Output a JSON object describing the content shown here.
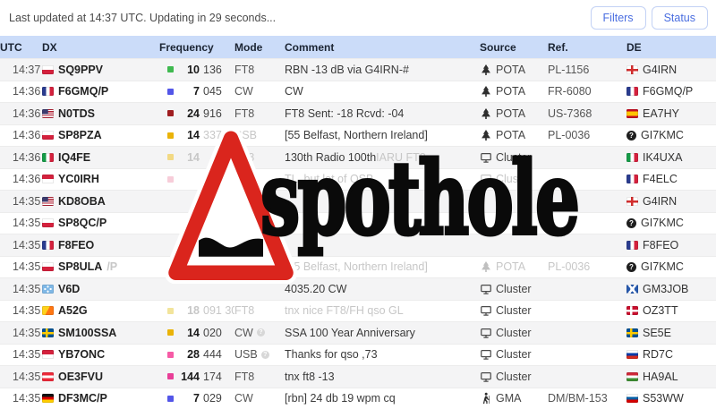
{
  "topbar": {
    "status_text": "Last updated at 14:37 UTC. Updating in 29 seconds...",
    "filters_label": "Filters",
    "status_label": "Status"
  },
  "watermark": {
    "text": "spothole",
    "sign": "pothole-warning-triangle",
    "triangle_color": "#da251d"
  },
  "table": {
    "columns": [
      "UTC",
      "DX",
      "Frequency",
      "Mode",
      "Comment",
      "Source",
      "Ref.",
      "DE"
    ],
    "band_colors": {
      "7": "#5356e8",
      "10": "#3fb950",
      "14": "#eab308",
      "24": "#9f1d20",
      "28": "#f65ba6",
      "144": "#e83e97"
    },
    "rows": [
      {
        "utc": "14:37",
        "dx_flag": "pl",
        "dx": "SQ9PPV",
        "dx_suffix": "",
        "dx_suffix_muted": false,
        "band_color": "#3fb950",
        "freq_mhz": "10",
        "freq_khz": "136",
        "freq_mhz_muted": false,
        "freq_khz_muted": false,
        "mode": "FT8",
        "mode_muted": false,
        "mode_info": false,
        "comment": [
          {
            "t": "RBN -13 dB via G4IRN-#",
            "muted": false
          }
        ],
        "source_icon": "tree-icon",
        "source": "POTA",
        "source_muted": false,
        "ref": "PL-1156",
        "ref_muted": false,
        "de_flag": "gb-eng",
        "de": "G4IRN"
      },
      {
        "utc": "14:36",
        "dx_flag": "fr",
        "dx": "F6GMQ/P",
        "dx_suffix": "",
        "dx_suffix_muted": false,
        "band_color": "#5356e8",
        "freq_mhz": "7",
        "freq_khz": "045",
        "freq_mhz_muted": false,
        "freq_khz_muted": false,
        "mode": "CW",
        "mode_muted": false,
        "mode_info": false,
        "comment": [
          {
            "t": "CW",
            "muted": false
          }
        ],
        "source_icon": "tree-icon",
        "source": "POTA",
        "source_muted": false,
        "ref": "FR-6080",
        "ref_muted": false,
        "de_flag": "fr",
        "de": "F6GMQ/P"
      },
      {
        "utc": "14:36",
        "dx_flag": "us",
        "dx": "N0TDS",
        "dx_suffix": "",
        "dx_suffix_muted": false,
        "band_color": "#9f1d20",
        "freq_mhz": "24",
        "freq_khz": "916",
        "freq_mhz_muted": false,
        "freq_khz_muted": false,
        "mode": "FT8",
        "mode_muted": false,
        "mode_info": false,
        "comment": [
          {
            "t": "FT8 Sent: -18 Rcvd: -04",
            "muted": false
          }
        ],
        "source_icon": "tree-icon",
        "source": "POTA",
        "source_muted": false,
        "ref": "US-7368",
        "ref_muted": false,
        "de_flag": "es",
        "de": "EA7HY"
      },
      {
        "utc": "14:36",
        "dx_flag": "pl",
        "dx": "SP8PZA",
        "dx_suffix": "",
        "dx_suffix_muted": false,
        "band_color": "#eab308",
        "freq_mhz": "14",
        "freq_khz": "337",
        "freq_mhz_muted": false,
        "freq_khz_muted": true,
        "mode": "SSB",
        "mode_muted": true,
        "mode_info": false,
        "comment": [
          {
            "t": "[55 Belfast, Northern Ireland]",
            "muted": false
          }
        ],
        "source_icon": "tree-icon",
        "source": "POTA",
        "source_muted": false,
        "ref": "PL-0036",
        "ref_muted": false,
        "de_flag": "unknown",
        "de": "GI7KMC"
      },
      {
        "utc": "14:36",
        "dx_flag": "it",
        "dx": "IQ4FE",
        "dx_suffix": "",
        "dx_suffix_muted": false,
        "band_color": "#f2d984",
        "freq_mhz": "14",
        "freq_khz": "",
        "freq_mhz_muted": true,
        "freq_khz_muted": true,
        "mode": "FT8",
        "mode_muted": true,
        "mode_info": false,
        "comment": [
          {
            "t": "130th Radio 100th ",
            "muted": false
          },
          {
            "t": "IARU FT8",
            "muted": true
          }
        ],
        "source_icon": "monitor-icon",
        "source": "Cluster",
        "source_muted": false,
        "ref": "",
        "ref_muted": false,
        "de_flag": "it",
        "de": "IK4UXA"
      },
      {
        "utc": "14:36",
        "dx_flag": "id",
        "dx": "YC0IRH",
        "dx_suffix": "",
        "dx_suffix_muted": false,
        "band_color": "#f7cdd9",
        "freq_mhz": "",
        "freq_khz": "",
        "freq_mhz_muted": true,
        "freq_khz_muted": true,
        "mode": "",
        "mode_muted": true,
        "mode_info": false,
        "comment": [
          {
            "t": "TL, but lot of QSB",
            "muted": true
          }
        ],
        "source_icon": "monitor-icon",
        "source": "Cluster",
        "source_muted": true,
        "ref": "",
        "ref_muted": false,
        "de_flag": "fr",
        "de": "F4ELC"
      },
      {
        "utc": "14:35",
        "dx_flag": "us",
        "dx": "KD8OBA",
        "dx_suffix": "",
        "dx_suffix_muted": false,
        "band_color": null,
        "freq_mhz": "",
        "freq_khz": "",
        "freq_mhz_muted": false,
        "freq_khz_muted": false,
        "mode": "",
        "mode_muted": false,
        "mode_info": false,
        "comment": [],
        "source_icon": null,
        "source": "",
        "source_muted": false,
        "ref": "",
        "ref_muted": false,
        "de_flag": "gb-eng",
        "de": "G4IRN"
      },
      {
        "utc": "14:35",
        "dx_flag": "pl",
        "dx": "SP8QC/P",
        "dx_suffix": "",
        "dx_suffix_muted": false,
        "band_color": null,
        "freq_mhz": "",
        "freq_khz": "",
        "freq_mhz_muted": false,
        "freq_khz_muted": false,
        "mode": "",
        "mode_muted": false,
        "mode_info": false,
        "comment": [],
        "source_icon": null,
        "source": "",
        "source_muted": false,
        "ref": "",
        "ref_muted": false,
        "de_flag": "unknown",
        "de": "GI7KMC"
      },
      {
        "utc": "14:35",
        "dx_flag": "fr",
        "dx": "F8FEO",
        "dx_suffix": "",
        "dx_suffix_muted": false,
        "band_color": null,
        "freq_mhz": "",
        "freq_khz": "",
        "freq_mhz_muted": false,
        "freq_khz_muted": false,
        "mode": "",
        "mode_muted": false,
        "mode_info": false,
        "comment": [],
        "source_icon": null,
        "source": "",
        "source_muted": false,
        "ref": "",
        "ref_muted": false,
        "de_flag": "fr",
        "de": "F8FEO"
      },
      {
        "utc": "14:35",
        "dx_flag": "pl",
        "dx": "SP8ULA",
        "dx_suffix": "/P",
        "dx_suffix_muted": true,
        "band_color": null,
        "freq_mhz": "",
        "freq_khz": "",
        "freq_mhz_muted": false,
        "freq_khz_muted": false,
        "mode": "",
        "mode_muted": false,
        "mode_info": false,
        "comment": [
          {
            "t": "[55 Belfast, Northern Ireland]",
            "muted": true
          }
        ],
        "source_icon": "tree-icon",
        "source": "POTA",
        "source_muted": true,
        "ref": "PL-0036",
        "ref_muted": true,
        "de_flag": "unknown",
        "de": "GI7KMC"
      },
      {
        "utc": "14:35",
        "dx_flag": "fm",
        "dx": "V6D",
        "dx_suffix": "",
        "dx_suffix_muted": false,
        "band_color": null,
        "freq_mhz": "",
        "freq_khz": "",
        "freq_mhz_muted": false,
        "freq_khz_muted": false,
        "mode": "",
        "mode_muted": false,
        "mode_info": false,
        "comment": [
          {
            "t": "4035.20 CW",
            "muted": false
          }
        ],
        "source_icon": "monitor-icon",
        "source": "Cluster",
        "source_muted": false,
        "ref": "",
        "ref_muted": false,
        "de_flag": "gb-sct",
        "de": "GM3JOB"
      },
      {
        "utc": "14:35",
        "dx_flag": "bt",
        "dx": "A52G",
        "dx_suffix": "",
        "dx_suffix_muted": false,
        "band_color": "#f2e49b",
        "freq_mhz": "18",
        "freq_khz": "091 300",
        "freq_mhz_muted": true,
        "freq_khz_muted": true,
        "mode": "FT8",
        "mode_muted": true,
        "mode_info": false,
        "comment": [
          {
            "t": "tnx nice FT8/FH qso GL",
            "muted": true
          }
        ],
        "source_icon": "monitor-icon",
        "source": "Cluster",
        "source_muted": false,
        "ref": "",
        "ref_muted": false,
        "de_flag": "dk",
        "de": "OZ3TT"
      },
      {
        "utc": "14:35",
        "dx_flag": "se",
        "dx": "SM100SSA",
        "dx_suffix": "",
        "dx_suffix_muted": false,
        "band_color": "#eab308",
        "freq_mhz": "14",
        "freq_khz": "020",
        "freq_mhz_muted": false,
        "freq_khz_muted": false,
        "mode": "CW",
        "mode_muted": false,
        "mode_info": true,
        "comment": [
          {
            "t": "SSA 100 Year Anniversary",
            "muted": false
          }
        ],
        "source_icon": "monitor-icon",
        "source": "Cluster",
        "source_muted": false,
        "ref": "",
        "ref_muted": false,
        "de_flag": "se",
        "de": "SE5E"
      },
      {
        "utc": "14:35",
        "dx_flag": "id",
        "dx": "YB7ONC",
        "dx_suffix": "",
        "dx_suffix_muted": false,
        "band_color": "#f65ba6",
        "freq_mhz": "28",
        "freq_khz": "444",
        "freq_mhz_muted": false,
        "freq_khz_muted": false,
        "mode": "USB",
        "mode_muted": false,
        "mode_info": true,
        "comment": [
          {
            "t": "Thanks for qso ,73",
            "muted": false
          }
        ],
        "source_icon": "monitor-icon",
        "source": "Cluster",
        "source_muted": false,
        "ref": "",
        "ref_muted": false,
        "de_flag": "ru",
        "de": "RD7C"
      },
      {
        "utc": "14:35",
        "dx_flag": "at",
        "dx": "OE3FVU",
        "dx_suffix": "",
        "dx_suffix_muted": false,
        "band_color": "#e83e97",
        "freq_mhz": "144",
        "freq_khz": "174",
        "freq_mhz_muted": false,
        "freq_khz_muted": false,
        "mode": "FT8",
        "mode_muted": false,
        "mode_info": false,
        "comment": [
          {
            "t": "tnx ft8 -13",
            "muted": false
          }
        ],
        "source_icon": "monitor-icon",
        "source": "Cluster",
        "source_muted": false,
        "ref": "",
        "ref_muted": false,
        "de_flag": "hu",
        "de": "HA9AL"
      },
      {
        "utc": "14:35",
        "dx_flag": "de",
        "dx": "DF3MC/P",
        "dx_suffix": "",
        "dx_suffix_muted": false,
        "band_color": "#5356e8",
        "freq_mhz": "7",
        "freq_khz": "029",
        "freq_mhz_muted": false,
        "freq_khz_muted": false,
        "mode": "CW",
        "mode_muted": false,
        "mode_info": false,
        "comment": [
          {
            "t": "[rbn] 24 db 19 wpm cq",
            "muted": false
          }
        ],
        "source_icon": "hiker-icon",
        "source": "GMA",
        "source_muted": false,
        "ref": "DM/BM-153",
        "ref_muted": false,
        "de_flag": "si",
        "de": "S53WW"
      }
    ]
  }
}
